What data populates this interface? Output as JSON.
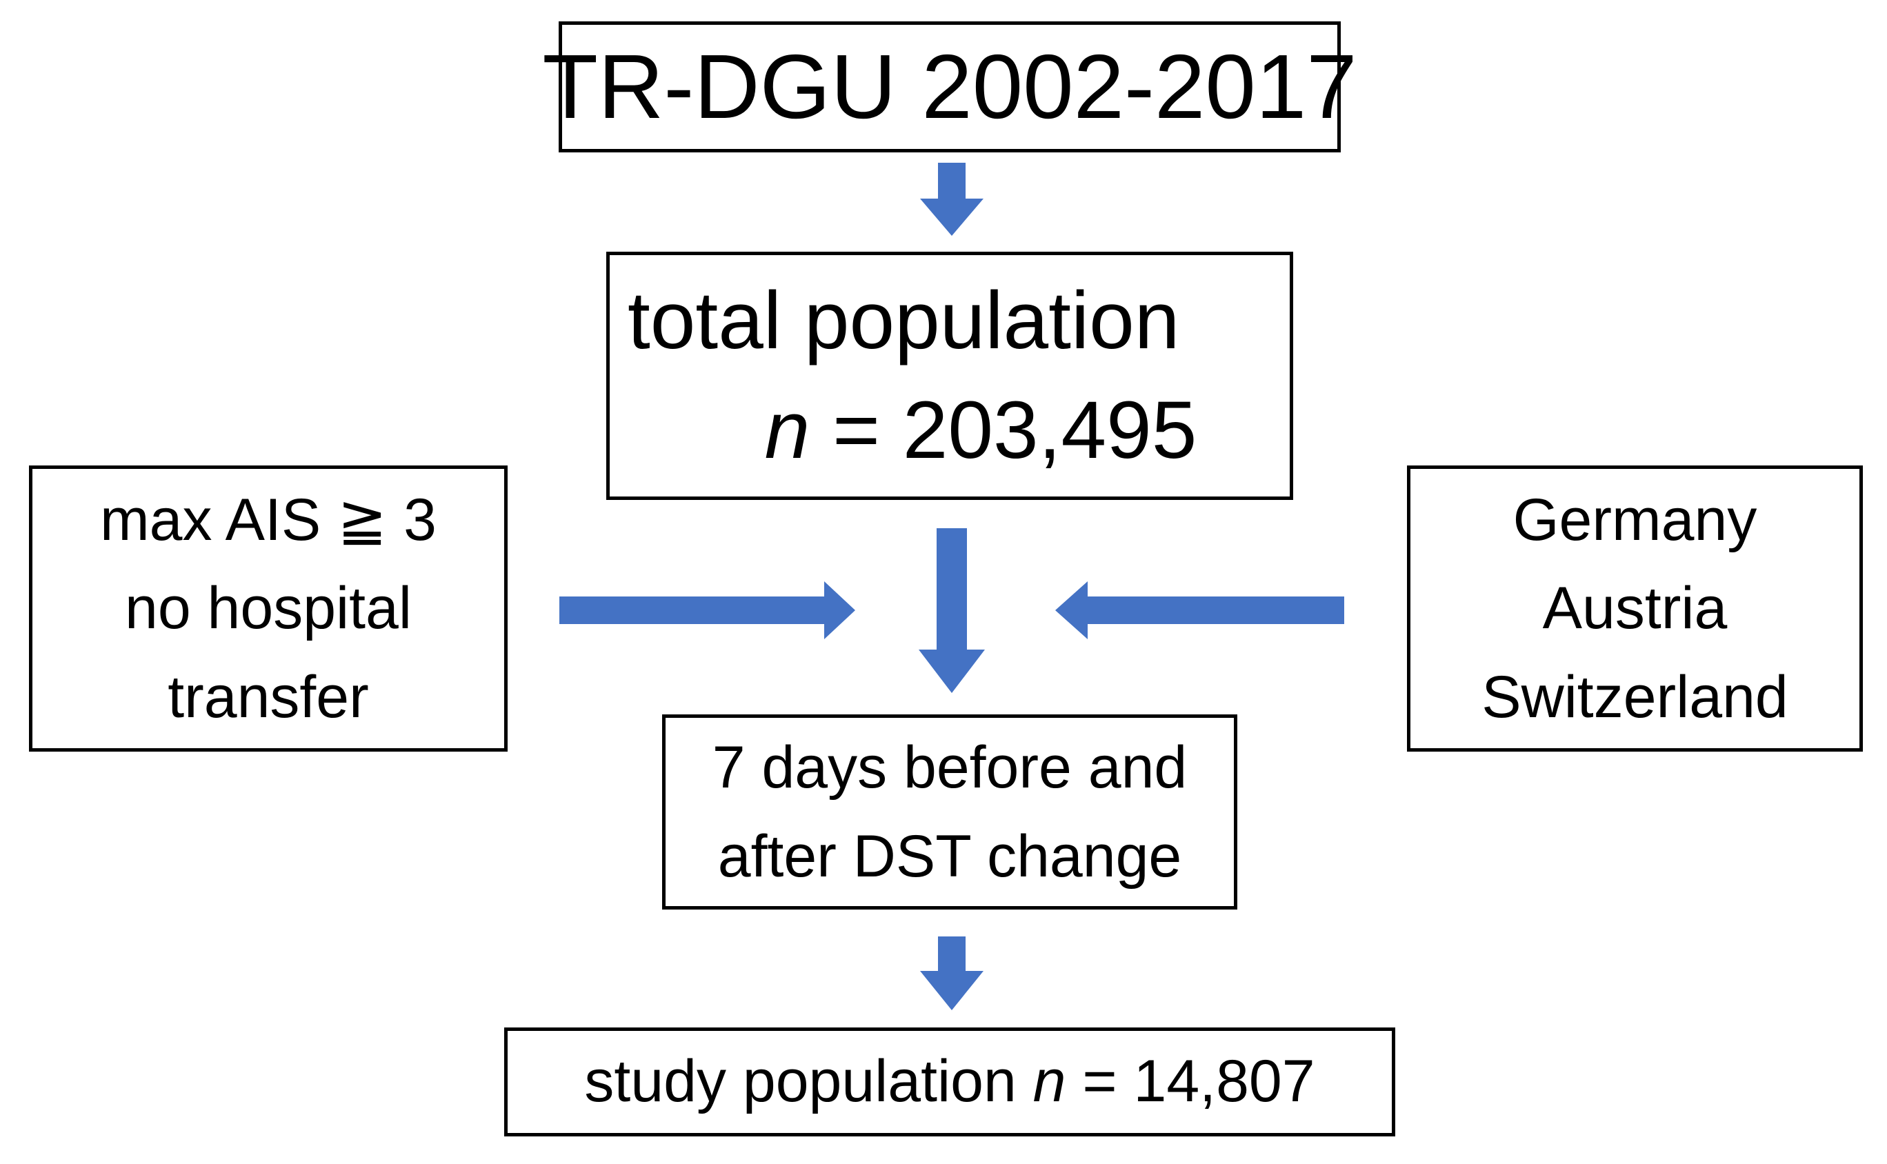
{
  "diagram": {
    "arrow_color": "#4472C4",
    "box_border_color": "#000000",
    "registry_box": {
      "text": "TR-DGU 2002-2017"
    },
    "total_population_box": {
      "line1": "total population",
      "n_symbol": "n",
      "n_value": " = 203,495"
    },
    "inclusion_criteria_box": {
      "lines": [
        "max AIS ≧ 3",
        "no hospital",
        "transfer"
      ]
    },
    "countries_box": {
      "lines": [
        "Germany",
        "Austria",
        "Switzerland"
      ]
    },
    "dst_window_box": {
      "lines": [
        "7 days before and",
        "after DST change"
      ]
    },
    "study_population_box": {
      "prefix": "study population ",
      "n_symbol": "n",
      "n_value": " = 14,807"
    }
  }
}
